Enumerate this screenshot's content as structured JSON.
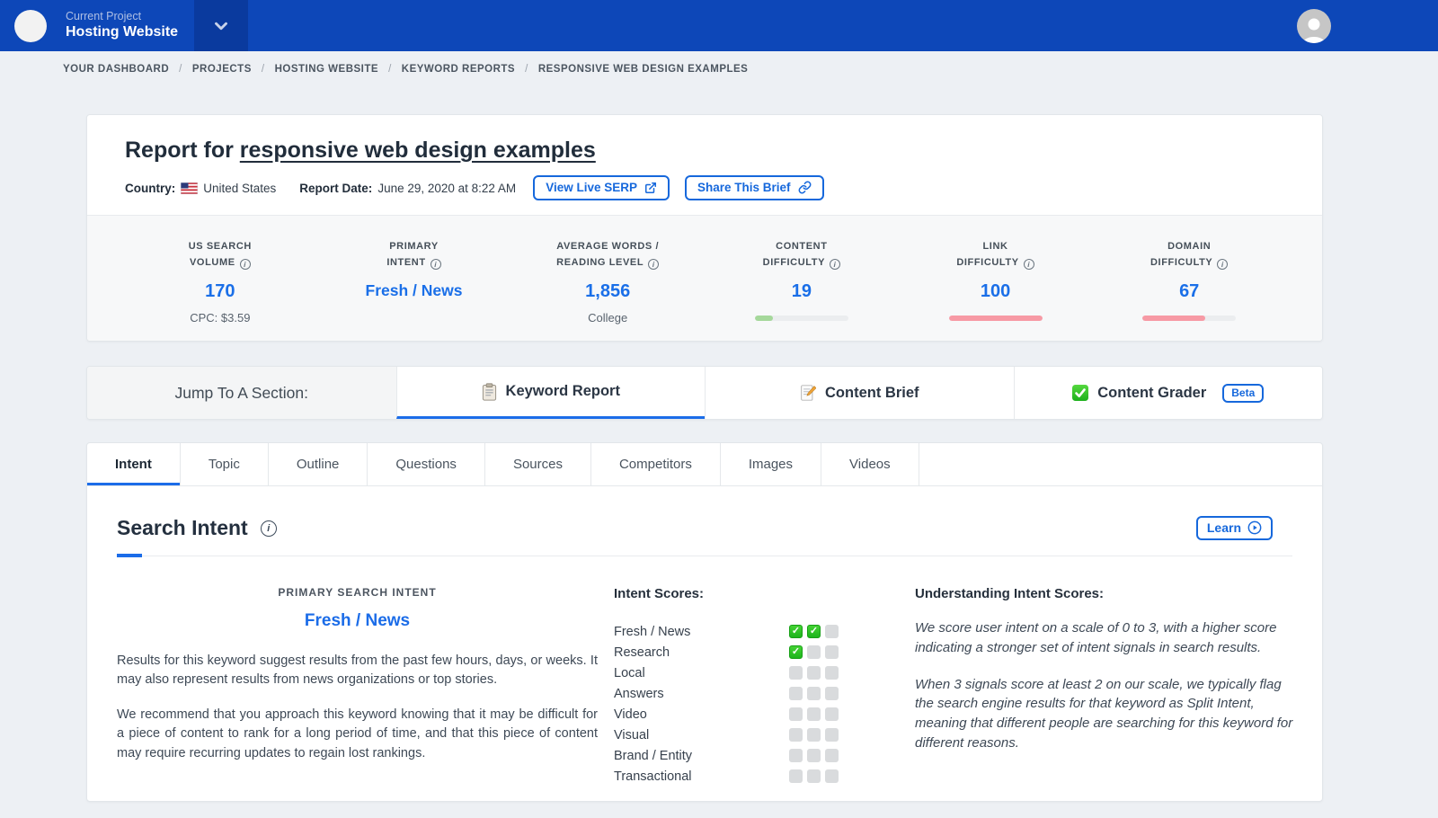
{
  "colors": {
    "topbar_blue": "#0d47b8",
    "topbar_dark_blue": "#0a3a9e",
    "accent_blue": "#1668dc",
    "value_blue": "#1a6fe8",
    "green_bar": "#a5d89b",
    "pink_bar": "#f79aa5",
    "check_green": "#2fc31f",
    "page_bg": "#edf0f4"
  },
  "topbar": {
    "project_label": "Current Project",
    "project_name": "Hosting Website"
  },
  "breadcrumb": {
    "separator": "/",
    "items": [
      "YOUR DASHBOARD",
      "PROJECTS",
      "HOSTING WEBSITE",
      "KEYWORD REPORTS",
      "RESPONSIVE WEB DESIGN EXAMPLES"
    ]
  },
  "report": {
    "title_prefix": "Report for ",
    "keyword": "responsive web design examples",
    "country_label": "Country:",
    "country": "United States",
    "date_label": "Report Date:",
    "date": "June 29, 2020 at 8:22 AM",
    "view_serp_button": "View Live SERP",
    "share_button": "Share This Brief"
  },
  "stats": {
    "items": [
      {
        "label_line1": "US SEARCH",
        "label_line2": "VOLUME",
        "value": "170",
        "sub": "CPC: $3.59"
      },
      {
        "label_line1": "PRIMARY",
        "label_line2": "INTENT",
        "value": "Fresh / News",
        "sub": ""
      },
      {
        "label_line1": "AVERAGE WORDS /",
        "label_line2": "READING LEVEL",
        "value": "1,856",
        "sub": "College"
      },
      {
        "label_line1": "CONTENT",
        "label_line2": "DIFFICULTY",
        "value": "19",
        "bar_percent": 19,
        "bar_color": "green"
      },
      {
        "label_line1": "LINK",
        "label_line2": "DIFFICULTY",
        "value": "100",
        "bar_percent": 100,
        "bar_color": "red"
      },
      {
        "label_line1": "DOMAIN",
        "label_line2": "DIFFICULTY",
        "value": "67",
        "bar_percent": 67,
        "bar_color": "red"
      }
    ]
  },
  "jump": {
    "label": "Jump To A Section:",
    "sections": [
      {
        "label": "Keyword Report",
        "icon": "clipboard-icon",
        "active": true
      },
      {
        "label": "Content Brief",
        "icon": "memo-pencil-icon",
        "active": false
      },
      {
        "label": "Content Grader",
        "icon": "green-check-icon",
        "active": false,
        "badge": "Beta"
      }
    ]
  },
  "tabs": {
    "active_index": 0,
    "items": [
      "Intent",
      "Topic",
      "Outline",
      "Questions",
      "Sources",
      "Competitors",
      "Images",
      "Videos"
    ]
  },
  "search_intent": {
    "heading": "Search Intent",
    "learn_button": "Learn",
    "primary_label": "PRIMARY SEARCH INTENT",
    "primary_value": "Fresh / News",
    "description": [
      "Results for this keyword suggest results from the past few hours, days, or weeks. It may also represent results from news organizations or top stories.",
      "We recommend that you approach this keyword knowing that it may be difficult for a piece of content to rank for a long period of time, and that this piece of content may require recurring updates to regain lost rankings."
    ],
    "scores_title": "Intent Scores:",
    "scores_max": 3,
    "scores": [
      {
        "label": "Fresh / News",
        "score": 2
      },
      {
        "label": "Research",
        "score": 1
      },
      {
        "label": "Local",
        "score": 0
      },
      {
        "label": "Answers",
        "score": 0
      },
      {
        "label": "Video",
        "score": 0
      },
      {
        "label": "Visual",
        "score": 0
      },
      {
        "label": "Brand / Entity",
        "score": 0
      },
      {
        "label": "Transactional",
        "score": 0
      }
    ],
    "understanding_title": "Understanding Intent Scores:",
    "understanding": [
      "We score user intent on a scale of 0 to 3, with a higher score indicating a stronger set of intent signals in search results.",
      "When 3 signals score at least 2 on our scale, we typically flag the search engine results for that keyword as Split Intent, meaning that different people are searching for this keyword for different reasons."
    ]
  }
}
